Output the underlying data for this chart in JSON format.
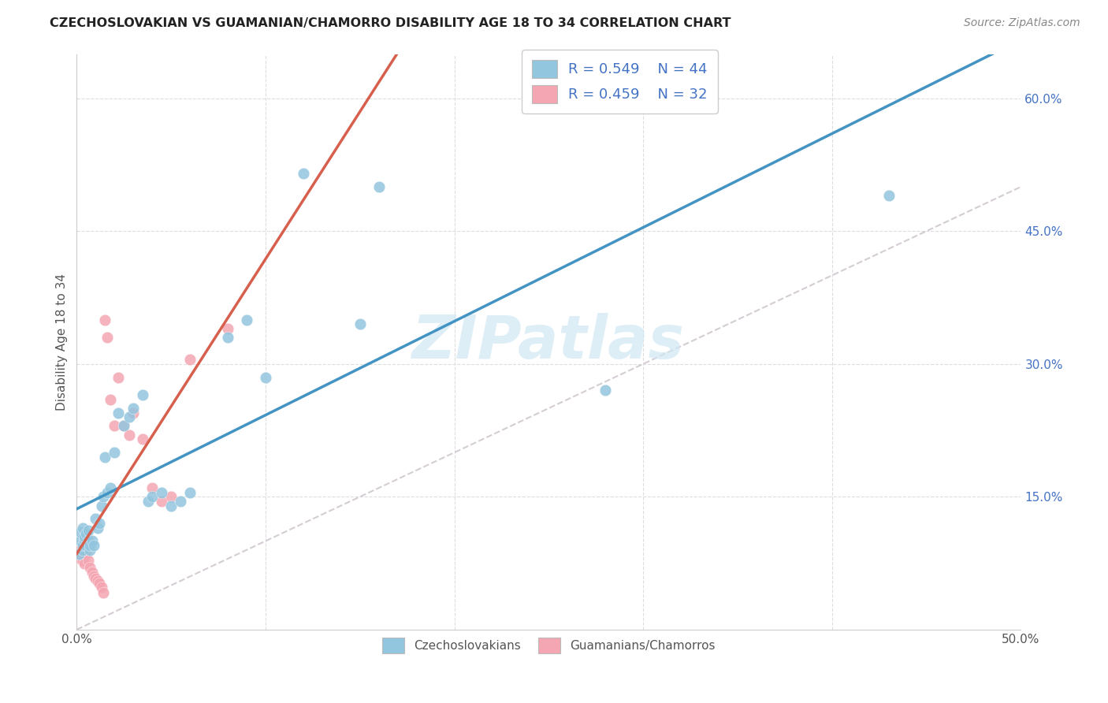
{
  "title": "CZECHOSLOVAKIAN VS GUAMANIAN/CHAMORRO DISABILITY AGE 18 TO 34 CORRELATION CHART",
  "source": "Source: ZipAtlas.com",
  "ylabel": "Disability Age 18 to 34",
  "xlim": [
    0.0,
    0.5
  ],
  "ylim": [
    0.0,
    0.65
  ],
  "xtick_positions": [
    0.0,
    0.1,
    0.2,
    0.3,
    0.4,
    0.5
  ],
  "xticklabels": [
    "0.0%",
    "",
    "",
    "",
    "",
    "50.0%"
  ],
  "ytick_right_positions": [
    0.15,
    0.3,
    0.45,
    0.6
  ],
  "ytick_right_labels": [
    "15.0%",
    "30.0%",
    "45.0%",
    "60.0%"
  ],
  "legend_r1": "0.549",
  "legend_n1": "44",
  "legend_r2": "0.459",
  "legend_n2": "32",
  "blue_scatter_color": "#92c5de",
  "pink_scatter_color": "#f4a6b2",
  "line_blue_color": "#4393c3",
  "line_pink_color": "#d6604d",
  "diagonal_color": "#d0c8d0",
  "watermark_color": "#d0e8f4",
  "grid_color": "#dddddd",
  "blue_scatter_x": [
    0.001,
    0.002,
    0.002,
    0.003,
    0.003,
    0.003,
    0.004,
    0.004,
    0.005,
    0.005,
    0.006,
    0.006,
    0.007,
    0.007,
    0.008,
    0.009,
    0.01,
    0.011,
    0.012,
    0.013,
    0.014,
    0.015,
    0.016,
    0.018,
    0.02,
    0.022,
    0.025,
    0.028,
    0.03,
    0.035,
    0.038,
    0.04,
    0.045,
    0.05,
    0.055,
    0.06,
    0.08,
    0.09,
    0.1,
    0.12,
    0.15,
    0.16,
    0.28,
    0.43
  ],
  "blue_scatter_y": [
    0.085,
    0.1,
    0.11,
    0.09,
    0.095,
    0.115,
    0.1,
    0.105,
    0.095,
    0.108,
    0.1,
    0.112,
    0.09,
    0.095,
    0.1,
    0.095,
    0.125,
    0.115,
    0.12,
    0.14,
    0.15,
    0.195,
    0.155,
    0.16,
    0.2,
    0.245,
    0.23,
    0.24,
    0.25,
    0.265,
    0.145,
    0.15,
    0.155,
    0.14,
    0.145,
    0.155,
    0.33,
    0.35,
    0.285,
    0.515,
    0.345,
    0.5,
    0.27,
    0.49
  ],
  "pink_scatter_x": [
    0.001,
    0.002,
    0.002,
    0.003,
    0.003,
    0.004,
    0.004,
    0.005,
    0.005,
    0.006,
    0.007,
    0.008,
    0.009,
    0.01,
    0.011,
    0.012,
    0.013,
    0.014,
    0.015,
    0.016,
    0.018,
    0.02,
    0.022,
    0.025,
    0.028,
    0.03,
    0.035,
    0.04,
    0.045,
    0.05,
    0.06,
    0.08
  ],
  "pink_scatter_y": [
    0.085,
    0.08,
    0.09,
    0.088,
    0.078,
    0.082,
    0.075,
    0.085,
    0.092,
    0.078,
    0.07,
    0.065,
    0.06,
    0.058,
    0.055,
    0.052,
    0.048,
    0.042,
    0.35,
    0.33,
    0.26,
    0.23,
    0.285,
    0.23,
    0.22,
    0.245,
    0.215,
    0.16,
    0.145,
    0.15,
    0.305,
    0.34
  ]
}
